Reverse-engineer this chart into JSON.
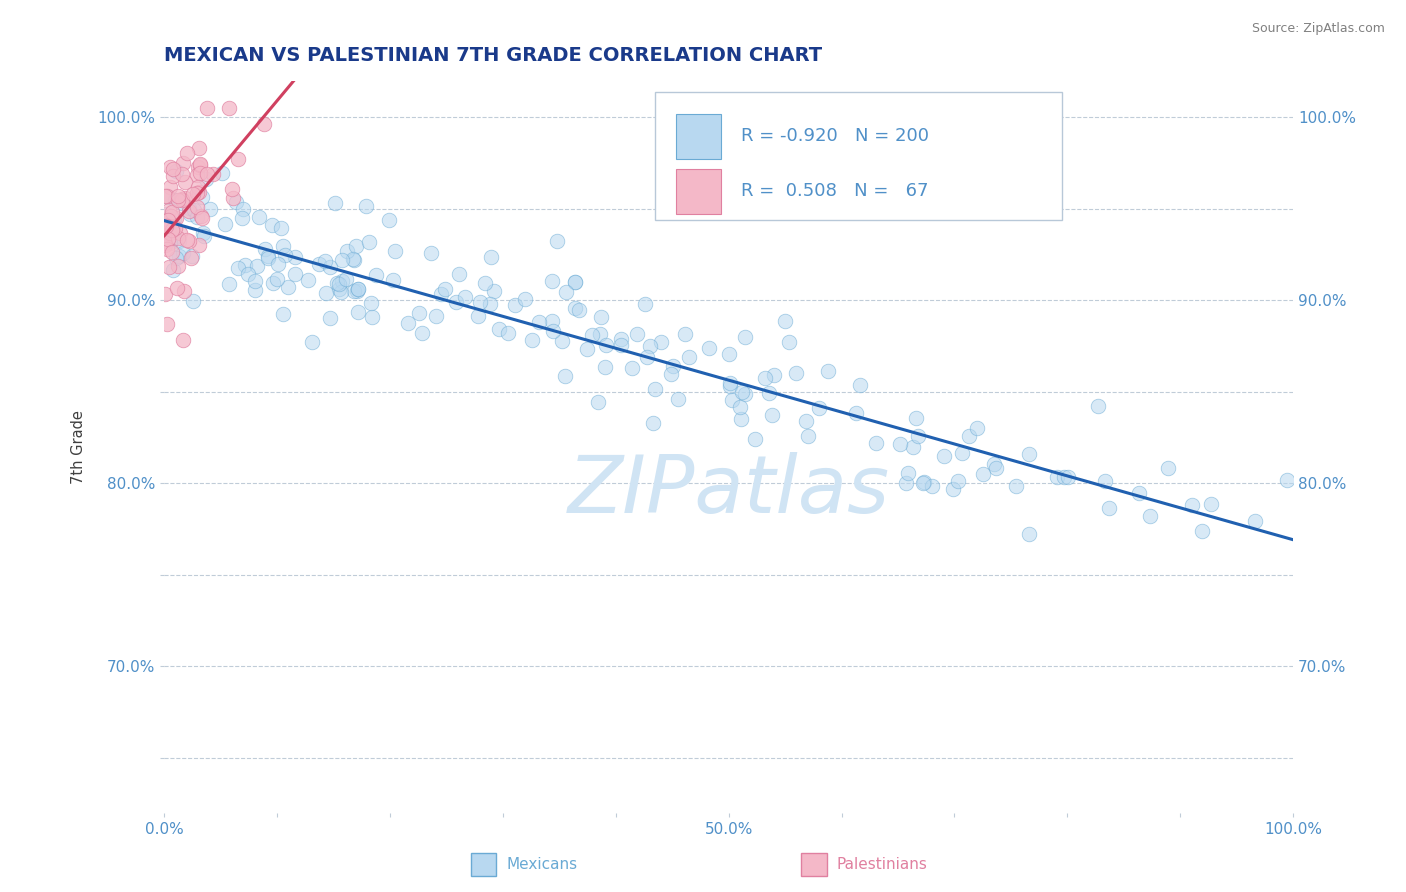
{
  "title": "MEXICAN VS PALESTINIAN 7TH GRADE CORRELATION CHART",
  "source_text": "Source: ZipAtlas.com",
  "ylabel": "7th Grade",
  "watermark": "ZIPatlas",
  "legend_r_mexican": "-0.920",
  "legend_n_mexican": "200",
  "legend_r_palestinian": "0.508",
  "legend_n_palestinian": "67",
  "xlim": [
    0.0,
    1.0
  ],
  "ylim": [
    0.62,
    1.02
  ],
  "x_ticks": [
    0.0,
    0.1,
    0.2,
    0.3,
    0.4,
    0.5,
    0.6,
    0.7,
    0.8,
    0.9,
    1.0
  ],
  "x_tick_labels": [
    "0.0%",
    "",
    "",
    "",
    "",
    "50.0%",
    "",
    "",
    "",
    "",
    "100.0%"
  ],
  "y_ticks": [
    0.65,
    0.7,
    0.75,
    0.8,
    0.85,
    0.9,
    0.95,
    1.0
  ],
  "y_tick_labels": [
    "",
    "70.0%",
    "",
    "80.0%",
    "",
    "90.0%",
    "",
    "100.0%"
  ],
  "right_y_tick_labels": [
    "",
    "70.0%",
    "",
    "80.0%",
    "",
    "90.0%",
    "",
    "100.0%"
  ],
  "mexican_color": "#b8d8f0",
  "mexican_edge_color": "#6aaad4",
  "palestinian_color": "#f4b8c8",
  "palestinian_edge_color": "#e080a0",
  "trend_mexican_color": "#2060b0",
  "trend_palestinian_color": "#d04060",
  "background_color": "#ffffff",
  "grid_color": "#c0ccd8",
  "title_color": "#1a3a8a",
  "axis_label_color": "#404040",
  "tick_label_color": "#5090c8",
  "legend_text_color": "#5090c8",
  "source_color": "#808080",
  "figsize": [
    14.06,
    8.92
  ],
  "dpi": 100,
  "title_fontsize": 14,
  "legend_fontsize": 13,
  "watermark_fontsize": 58,
  "watermark_color": "#d0e4f4",
  "scatter_size": 110,
  "scatter_alpha": 0.55
}
